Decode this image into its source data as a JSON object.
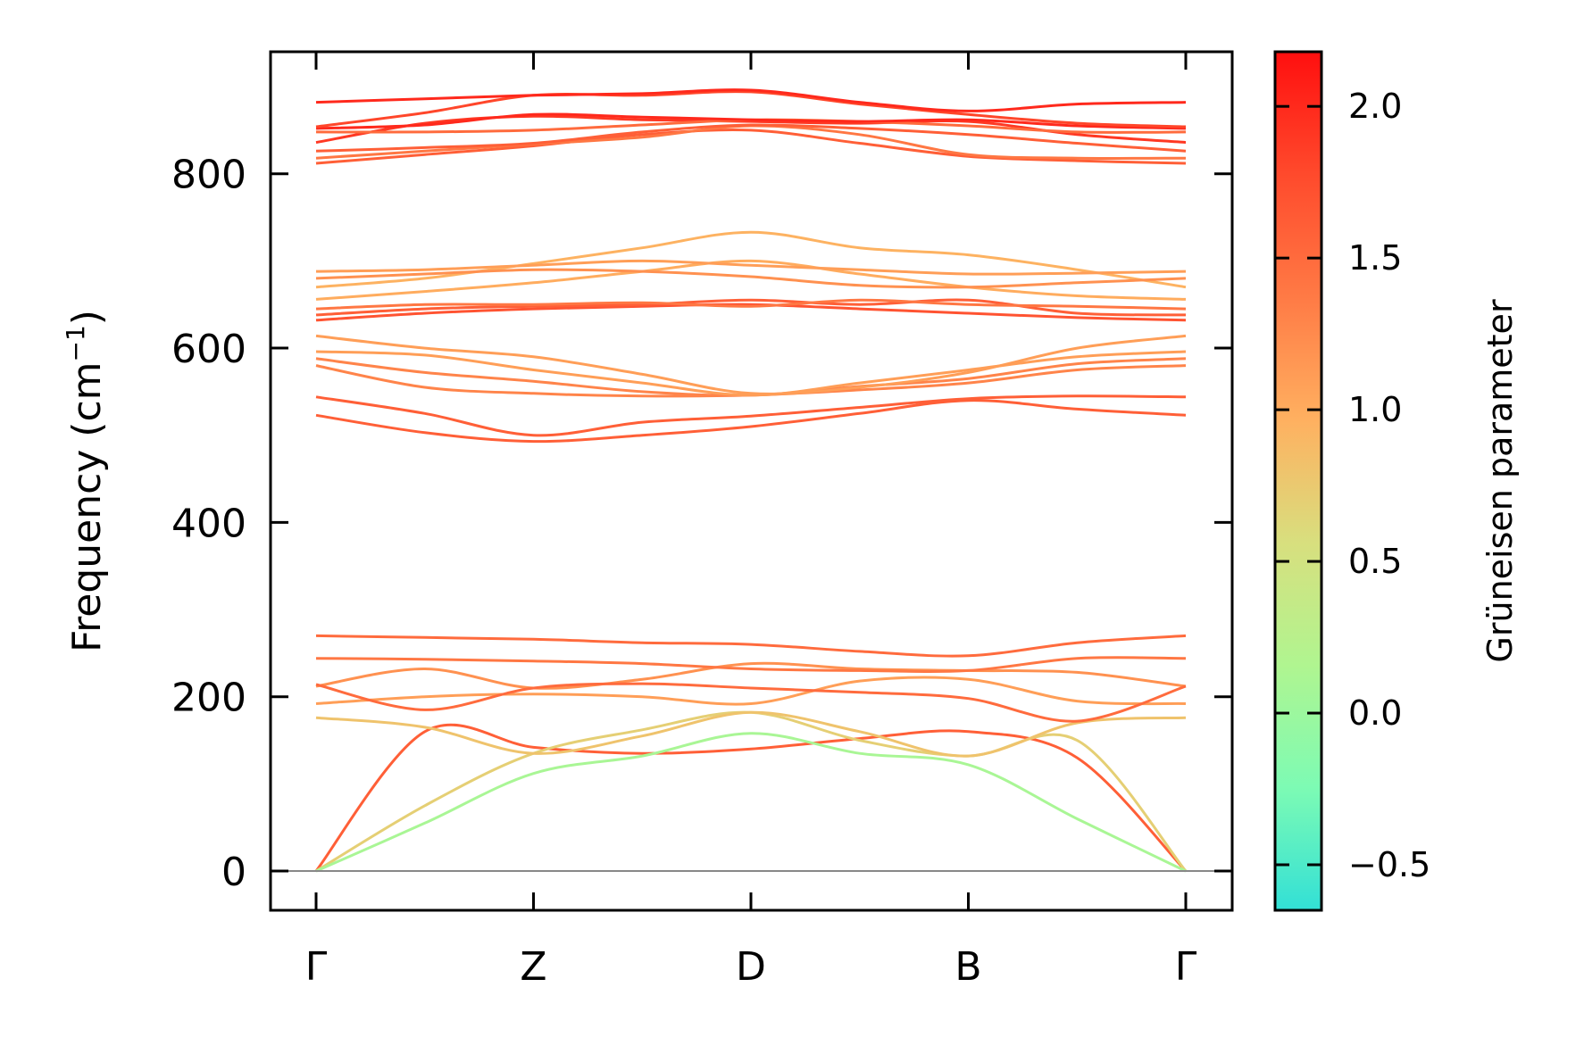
{
  "chart_data": {
    "type": "line",
    "title": "",
    "xlabel": "",
    "ylabel": "Frequency (cm",
    "ylabel_unit_sup": "−1",
    "ylabel_close": ")",
    "ylim": [
      -45,
      940
    ],
    "y_ticks": [
      0,
      200,
      400,
      600,
      800
    ],
    "y_tick_labels": [
      "0",
      "200",
      "400",
      "600",
      "800"
    ],
    "x_ticks": [
      0,
      1,
      2,
      3,
      4
    ],
    "x_tick_labels": [
      "Γ",
      "Z",
      "D",
      "B",
      "Γ"
    ],
    "zero_line": true,
    "colorbar": {
      "label": "Grüneisen parameter",
      "range": [
        -0.65,
        2.18
      ],
      "ticks": [
        -0.5,
        0.0,
        0.5,
        1.0,
        1.5,
        2.0
      ],
      "tick_labels": [
        "−0.5",
        "0.0",
        "0.5",
        "1.0",
        "1.5",
        "2.0"
      ],
      "colormap": [
        "#32e0d6",
        "#7dfbb4",
        "#b0f590",
        "#d8df7e",
        "#ffb060",
        "#ff7a45",
        "#ff4a2c",
        "#ff0f0f"
      ]
    },
    "series": [
      {
        "values": [
          0,
          160,
          142,
          135,
          140,
          152,
          160,
          130,
          0
        ],
        "gamma": 1.6
      },
      {
        "values": [
          0,
          75,
          135,
          162,
          182,
          150,
          132,
          150,
          0
        ],
        "gamma": 0.7
      },
      {
        "values": [
          0,
          55,
          112,
          132,
          158,
          135,
          122,
          60,
          0
        ],
        "gamma": 0.1
      },
      {
        "values": [
          176,
          165,
          135,
          155,
          182,
          160,
          132,
          170,
          176
        ],
        "gamma": 0.8
      },
      {
        "values": [
          192,
          200,
          203,
          200,
          192,
          218,
          220,
          195,
          192
        ],
        "gamma": 1.1
      },
      {
        "values": [
          212,
          232,
          210,
          220,
          238,
          232,
          230,
          228,
          212
        ],
        "gamma": 1.2
      },
      {
        "values": [
          214,
          185,
          210,
          215,
          210,
          205,
          198,
          172,
          212
        ],
        "gamma": 1.5
      },
      {
        "values": [
          244,
          243,
          241,
          238,
          232,
          230,
          230,
          244,
          244
        ],
        "gamma": 1.4
      },
      {
        "values": [
          270,
          268,
          266,
          262,
          260,
          252,
          247,
          262,
          270
        ],
        "gamma": 1.5
      },
      {
        "values": [
          523,
          503,
          493,
          500,
          510,
          525,
          540,
          530,
          523
        ],
        "gamma": 1.6
      },
      {
        "values": [
          544,
          525,
          500,
          515,
          522,
          532,
          542,
          545,
          544
        ],
        "gamma": 1.6
      },
      {
        "values": [
          580,
          555,
          548,
          545,
          546,
          552,
          560,
          575,
          580
        ],
        "gamma": 1.3
      },
      {
        "values": [
          588,
          572,
          562,
          550,
          546,
          556,
          565,
          582,
          588
        ],
        "gamma": 1.3
      },
      {
        "values": [
          596,
          592,
          575,
          560,
          546,
          560,
          575,
          590,
          596
        ],
        "gamma": 1.1
      },
      {
        "values": [
          614,
          600,
          590,
          570,
          548,
          555,
          572,
          600,
          614
        ],
        "gamma": 1.1
      },
      {
        "values": [
          632,
          640,
          645,
          648,
          650,
          645,
          640,
          635,
          632
        ],
        "gamma": 1.7
      },
      {
        "values": [
          638,
          645,
          648,
          650,
          655,
          650,
          655,
          640,
          638
        ],
        "gamma": 1.6
      },
      {
        "values": [
          645,
          650,
          650,
          652,
          648,
          655,
          650,
          648,
          645
        ],
        "gamma": 1.4
      },
      {
        "values": [
          656,
          665,
          675,
          688,
          700,
          685,
          670,
          660,
          656
        ],
        "gamma": 1.0
      },
      {
        "values": [
          670,
          680,
          697,
          715,
          733,
          715,
          707,
          690,
          670
        ],
        "gamma": 0.95
      },
      {
        "values": [
          680,
          685,
          690,
          688,
          682,
          672,
          670,
          675,
          680
        ],
        "gamma": 1.2
      },
      {
        "values": [
          688,
          690,
          695,
          700,
          695,
          690,
          685,
          686,
          688
        ],
        "gamma": 1.1
      },
      {
        "values": [
          812,
          822,
          832,
          845,
          850,
          835,
          820,
          815,
          812
        ],
        "gamma": 1.6
      },
      {
        "values": [
          818,
          826,
          834,
          842,
          855,
          845,
          822,
          818,
          818
        ],
        "gamma": 1.4
      },
      {
        "values": [
          826,
          830,
          835,
          848,
          856,
          852,
          845,
          835,
          826
        ],
        "gamma": 1.6
      },
      {
        "values": [
          836,
          858,
          866,
          862,
          860,
          858,
          860,
          845,
          836
        ],
        "gamma": 1.9
      },
      {
        "values": [
          848,
          848,
          850,
          856,
          862,
          860,
          855,
          848,
          848
        ],
        "gamma": 1.5
      },
      {
        "values": [
          852,
          856,
          868,
          865,
          862,
          860,
          862,
          855,
          852
        ],
        "gamma": 2.0
      },
      {
        "values": [
          854,
          870,
          890,
          890,
          894,
          880,
          868,
          858,
          854
        ],
        "gamma": 1.8
      },
      {
        "values": [
          882,
          886,
          890,
          892,
          896,
          882,
          872,
          880,
          882
        ],
        "gamma": 2.0
      }
    ]
  }
}
